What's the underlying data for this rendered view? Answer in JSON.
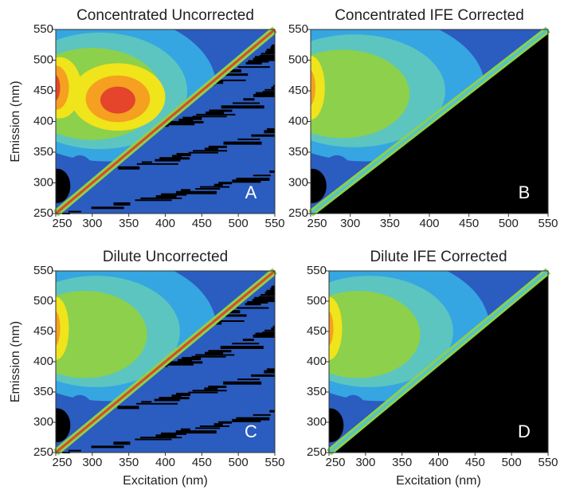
{
  "chart_data": [
    {
      "type": "contour",
      "title": "Concentrated Uncorrected",
      "label": "A",
      "ylabel": "Emission (nm)",
      "xlim": [
        250,
        550
      ],
      "ylim": [
        250,
        550
      ],
      "xticks": [
        250,
        300,
        350,
        400,
        450,
        500,
        550
      ],
      "yticks": [
        250,
        300,
        350,
        400,
        450,
        500,
        550
      ],
      "background": "#2b5cbf",
      "lower_color": "#2b5cbf",
      "diagonal_color": "#d94a2a",
      "colors": [
        "#35a6e2",
        "#5cc5c0",
        "#8dd04c",
        "#f0e41a",
        "#f5a020",
        "#e4452b"
      ]
    },
    {
      "type": "contour",
      "title": "Concentrated IFE Corrected",
      "label": "B",
      "xlim": [
        250,
        550
      ],
      "ylim": [
        250,
        550
      ],
      "xticks": [
        250,
        300,
        350,
        400,
        450,
        500,
        550
      ],
      "yticks": [
        250,
        300,
        350,
        400,
        450,
        500,
        550
      ],
      "background": "#2b5cbf",
      "lower_color": "#000000",
      "diagonal_color": "#4fc3d8",
      "colors": [
        "#35a6e2",
        "#5cc5c0",
        "#8dd04c",
        "#f0e41a",
        "#f5a020"
      ]
    },
    {
      "type": "contour",
      "title": "Dilute Uncorrected",
      "label": "C",
      "ylabel": "Emission (nm)",
      "xlabel": "Excitation (nm)",
      "xlim": [
        250,
        550
      ],
      "ylim": [
        250,
        550
      ],
      "xticks": [
        250,
        300,
        350,
        400,
        450,
        500,
        550
      ],
      "yticks": [
        250,
        300,
        350,
        400,
        450,
        500,
        550
      ],
      "background": "#2b5cbf",
      "lower_color": "#2b5cbf",
      "diagonal_color": "#d94a2a",
      "colors": [
        "#35a6e2",
        "#5cc5c0",
        "#8dd04c",
        "#f0e41a",
        "#f5a020"
      ]
    },
    {
      "type": "contour",
      "title": "Dilute IFE Corrected",
      "label": "D",
      "xlabel": "Excitation (nm)",
      "xlim": [
        250,
        550
      ],
      "ylim": [
        250,
        550
      ],
      "xticks": [
        250,
        300,
        350,
        400,
        450,
        500,
        550
      ],
      "yticks": [
        250,
        300,
        350,
        400,
        450,
        500,
        550
      ],
      "background": "#2b5cbf",
      "lower_color": "#000000",
      "diagonal_color": "#4fc3d8",
      "colors": [
        "#35a6e2",
        "#5cc5c0",
        "#8dd04c",
        "#f0e41a",
        "#f5a020"
      ]
    }
  ]
}
